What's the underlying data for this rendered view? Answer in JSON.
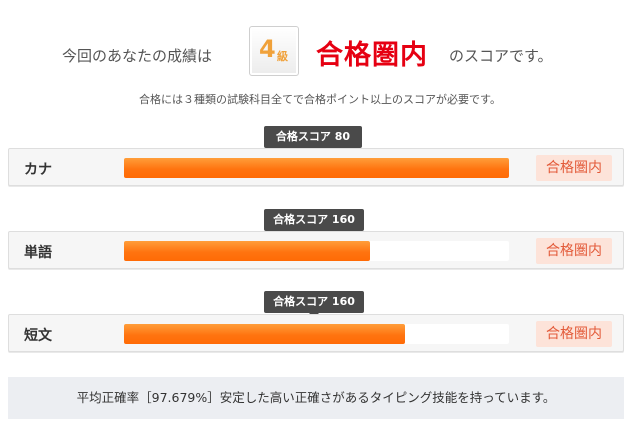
{
  "header": {
    "prefix": "今回のあなたの成績は",
    "grade_number": "4",
    "grade_unit": "級",
    "result": "合格圏内",
    "suffix": "のスコアです。"
  },
  "note": "合格には３種類の試験科目全てで合格ポイント以上のスコアが必要です。",
  "sections": [
    {
      "label": "カナ",
      "tooltip": "合格スコア 80",
      "status": "合格圏内",
      "progress_percent": 100
    },
    {
      "label": "単語",
      "tooltip": "合格スコア 160",
      "status": "合格圏内",
      "progress_percent": 64
    },
    {
      "label": "短文",
      "tooltip": "合格スコア 160",
      "status": "合格圏内",
      "progress_percent": 73
    }
  ],
  "footer": "平均正確率［97.679%］安定した高い正確さがあるタイピング技能を持っています。",
  "colors": {
    "accent_red": "#e60012",
    "grade_orange": "#f0a13a",
    "bar_orange": "#ff7410",
    "badge_bg": "#fde3d9",
    "badge_text": "#e35b3a",
    "tooltip_bg": "#4a4a4a"
  }
}
